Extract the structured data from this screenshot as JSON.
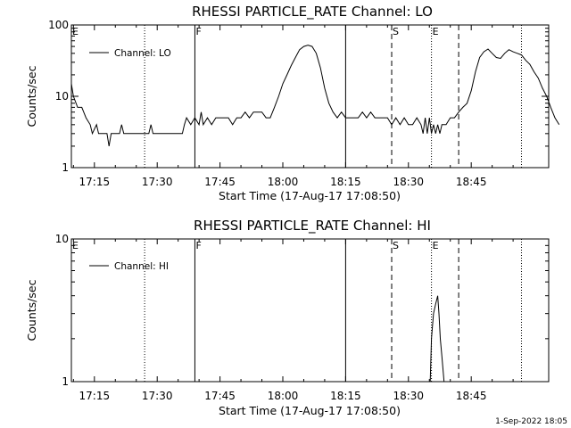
{
  "chart_data": [
    {
      "type": "line",
      "title": "RHESSI PARTICLE_RATE Channel: LO",
      "xlabel": "Start Time (17-Aug-17 17:08:50)",
      "ylabel": "Counts/sec",
      "y_scale": "log",
      "xlim_min": [
        9.5,
        103
      ],
      "ylim": [
        1,
        100
      ],
      "y_ticks": [
        {
          "value": 1,
          "label": "1"
        },
        {
          "value": 10,
          "label": "10"
        },
        {
          "value": 100,
          "label": "100"
        }
      ],
      "x_ticks": [
        {
          "value": 15,
          "label": "17:15"
        },
        {
          "value": 30,
          "label": "17:30"
        },
        {
          "value": 45,
          "label": "17:45"
        },
        {
          "value": 60,
          "label": "18:00"
        },
        {
          "value": 75,
          "label": "18:15"
        },
        {
          "value": 90,
          "label": "18:30"
        },
        {
          "value": 105,
          "label": "18:45"
        }
      ],
      "legend": {
        "label": "Channel: LO",
        "placement": "top-left"
      },
      "series": [
        {
          "points": [
            [
              9.5,
              15
            ],
            [
              10,
              10
            ],
            [
              11,
              7
            ],
            [
              12,
              7
            ],
            [
              13,
              5
            ],
            [
              14,
              4
            ],
            [
              14.5,
              3
            ],
            [
              15.5,
              4
            ],
            [
              16,
              3
            ],
            [
              17,
              3
            ],
            [
              18,
              3
            ],
            [
              18.5,
              2
            ],
            [
              19,
              3
            ],
            [
              20,
              3
            ],
            [
              21,
              3
            ],
            [
              21.5,
              4
            ],
            [
              22,
              3
            ],
            [
              23,
              3
            ],
            [
              24,
              3
            ],
            [
              25,
              3
            ],
            [
              26,
              3
            ],
            [
              27,
              3
            ],
            [
              28,
              3
            ],
            [
              28.5,
              4
            ],
            [
              29,
              3
            ],
            [
              30,
              3
            ],
            [
              31,
              3
            ],
            [
              32,
              3
            ],
            [
              33,
              3
            ],
            [
              34,
              3
            ],
            [
              35,
              3
            ],
            [
              36,
              3
            ],
            [
              36.5,
              4
            ],
            [
              37,
              5
            ],
            [
              38,
              4
            ],
            [
              39,
              5
            ],
            [
              40,
              4
            ],
            [
              40.5,
              6
            ],
            [
              41,
              4
            ],
            [
              42,
              5
            ],
            [
              43,
              4
            ],
            [
              44,
              5
            ],
            [
              45,
              5
            ],
            [
              46,
              5
            ],
            [
              47,
              5
            ],
            [
              48,
              4
            ],
            [
              49,
              5
            ],
            [
              50,
              5
            ],
            [
              51,
              6
            ],
            [
              52,
              5
            ],
            [
              53,
              6
            ],
            [
              54,
              6
            ],
            [
              55,
              6
            ],
            [
              56,
              5
            ],
            [
              57,
              5
            ],
            [
              58,
              7
            ],
            [
              59,
              10
            ],
            [
              60,
              15
            ],
            [
              61,
              20
            ],
            [
              62,
              27
            ],
            [
              63,
              35
            ],
            [
              64,
              45
            ],
            [
              65,
              50
            ],
            [
              66,
              52
            ],
            [
              67,
              50
            ],
            [
              68,
              40
            ],
            [
              69,
              25
            ],
            [
              70,
              13
            ],
            [
              71,
              8
            ],
            [
              72,
              6
            ],
            [
              73,
              5
            ],
            [
              74,
              6
            ],
            [
              75,
              5
            ],
            [
              76,
              5
            ],
            [
              77,
              5
            ],
            [
              78,
              5
            ],
            [
              79,
              6
            ],
            [
              80,
              5
            ],
            [
              81,
              6
            ],
            [
              82,
              5
            ],
            [
              83,
              5
            ],
            [
              84,
              5
            ],
            [
              85,
              5
            ],
            [
              86,
              4
            ],
            [
              87,
              5
            ],
            [
              88,
              4
            ],
            [
              89,
              5
            ],
            [
              90,
              4
            ],
            [
              91,
              4
            ],
            [
              92,
              5
            ],
            [
              93,
              4
            ],
            [
              93.5,
              3
            ],
            [
              94,
              5
            ],
            [
              94.5,
              3
            ],
            [
              95,
              5
            ],
            [
              95.5,
              3
            ],
            [
              96,
              4
            ],
            [
              96.5,
              3
            ],
            [
              97,
              4
            ],
            [
              97.5,
              3
            ],
            [
              98,
              4
            ],
            [
              99,
              4
            ],
            [
              100,
              5
            ],
            [
              101,
              5
            ],
            [
              102,
              6
            ],
            [
              103,
              7
            ],
            [
              104,
              8
            ],
            [
              105,
              12
            ],
            [
              106,
              22
            ],
            [
              107,
              35
            ],
            [
              108,
              42
            ],
            [
              109,
              46
            ],
            [
              110,
              40
            ],
            [
              111,
              35
            ],
            [
              112,
              34
            ],
            [
              113,
              40
            ],
            [
              114,
              45
            ],
            [
              115,
              42
            ],
            [
              116,
              40
            ],
            [
              117,
              38
            ],
            [
              118,
              32
            ],
            [
              119,
              28
            ],
            [
              120,
              22
            ],
            [
              121,
              18
            ],
            [
              122,
              13
            ],
            [
              123,
              10
            ],
            [
              124,
              7
            ],
            [
              125,
              5
            ],
            [
              126,
              4
            ]
          ]
        }
      ],
      "markers": [
        {
          "x": 9.5,
          "label": "E",
          "style": "dotted"
        },
        {
          "x": 27,
          "label": "",
          "style": "dotted"
        },
        {
          "x": 39,
          "label": "F",
          "style": "solid"
        },
        {
          "x": 75,
          "label": "",
          "style": "solid"
        },
        {
          "x": 86,
          "label": "S",
          "style": "dashed"
        },
        {
          "x": 95.5,
          "label": "E",
          "style": "dotted"
        },
        {
          "x": 102,
          "label": "",
          "style": "dashed"
        },
        {
          "x": 117,
          "label": "",
          "style": "dotted"
        }
      ]
    },
    {
      "type": "line",
      "title": "RHESSI PARTICLE_RATE Channel: HI",
      "xlabel": "Start Time (17-Aug-17 17:08:50)",
      "ylabel": "Counts/sec",
      "y_scale": "log",
      "ylim": [
        1,
        10
      ],
      "y_ticks": [
        {
          "value": 1,
          "label": "1"
        },
        {
          "value": 10,
          "label": "10"
        }
      ],
      "x_ticks": [
        {
          "value": 15,
          "label": "17:15"
        },
        {
          "value": 30,
          "label": "17:30"
        },
        {
          "value": 45,
          "label": "17:45"
        },
        {
          "value": 60,
          "label": "18:00"
        },
        {
          "value": 75,
          "label": "18:15"
        },
        {
          "value": 90,
          "label": "18:30"
        },
        {
          "value": 105,
          "label": "18:45"
        }
      ],
      "legend": {
        "label": "Channel: HI",
        "placement": "top-left"
      },
      "series": [
        {
          "points": [
            [
              95.2,
              1
            ],
            [
              95.5,
              2
            ],
            [
              96,
              3
            ],
            [
              96.5,
              3.5
            ],
            [
              97,
              4
            ],
            [
              97.3,
              3
            ],
            [
              97.6,
              2
            ],
            [
              98,
              1.5
            ],
            [
              98.5,
              1
            ]
          ]
        }
      ],
      "markers": [
        {
          "x": 9.5,
          "label": "E",
          "style": "dotted"
        },
        {
          "x": 27,
          "label": "",
          "style": "dotted"
        },
        {
          "x": 39,
          "label": "F",
          "style": "solid"
        },
        {
          "x": 75,
          "label": "",
          "style": "solid"
        },
        {
          "x": 86,
          "label": "S",
          "style": "dashed"
        },
        {
          "x": 95.5,
          "label": "E",
          "style": "dotted"
        },
        {
          "x": 102,
          "label": "",
          "style": "dashed"
        },
        {
          "x": 117,
          "label": "",
          "style": "dotted"
        }
      ]
    }
  ],
  "footer": {
    "timestamp": "1-Sep-2022 18:05"
  }
}
